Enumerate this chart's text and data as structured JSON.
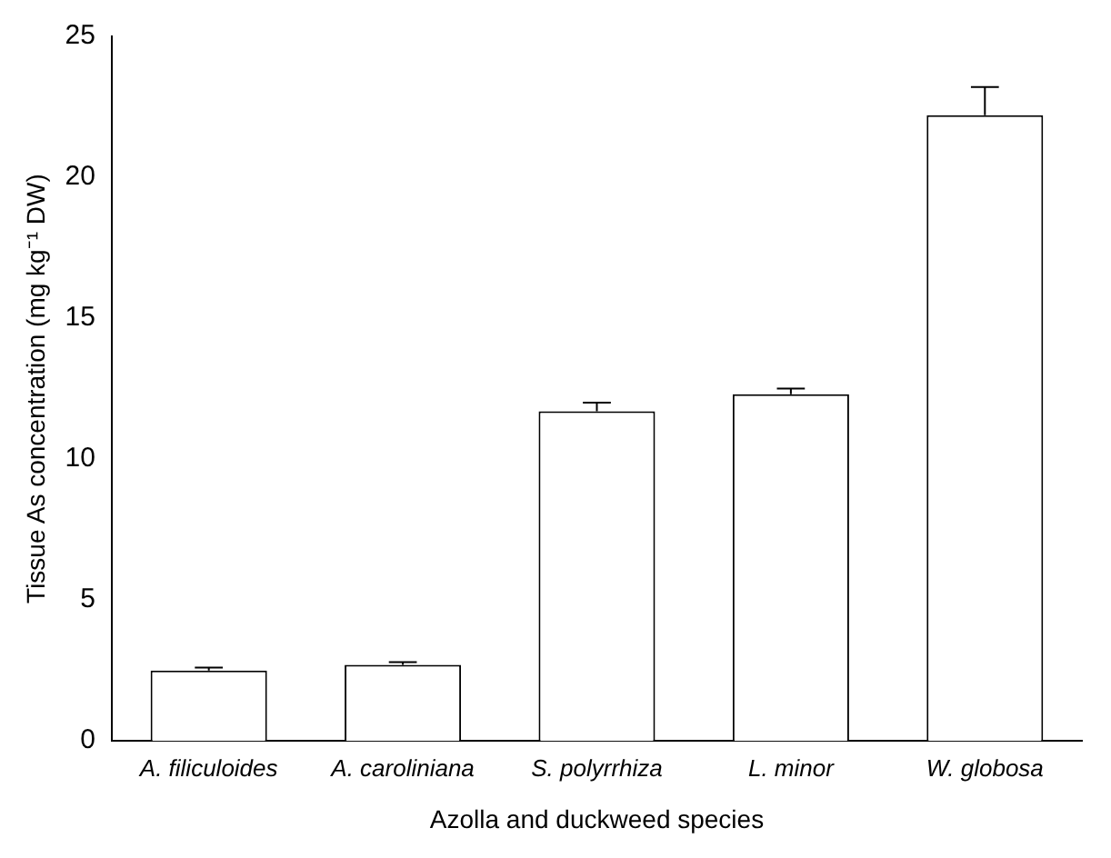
{
  "chart_data": {
    "type": "bar",
    "xlabel": "Azolla and duckweed species",
    "ylabel": "Tissue As concentration (mg kg⁻¹ DW)",
    "categories": [
      "A. filiculoides",
      "A. caroliniana",
      "S. polyrrhiza",
      "L. minor",
      "W. globosa"
    ],
    "values": [
      2.5,
      2.7,
      11.7,
      12.3,
      22.2
    ],
    "errors": [
      [
        2.5,
        2.6
      ],
      [
        2.7,
        2.8
      ],
      [
        11.7,
        12
      ],
      [
        12.3,
        12.5
      ],
      [
        22.2,
        23.2
      ]
    ],
    "color": "#ffffff",
    "ylim": [
      0,
      25
    ],
    "yticks": [
      0,
      5,
      10,
      15,
      20,
      25
    ],
    "grid": false,
    "legend": false
  }
}
